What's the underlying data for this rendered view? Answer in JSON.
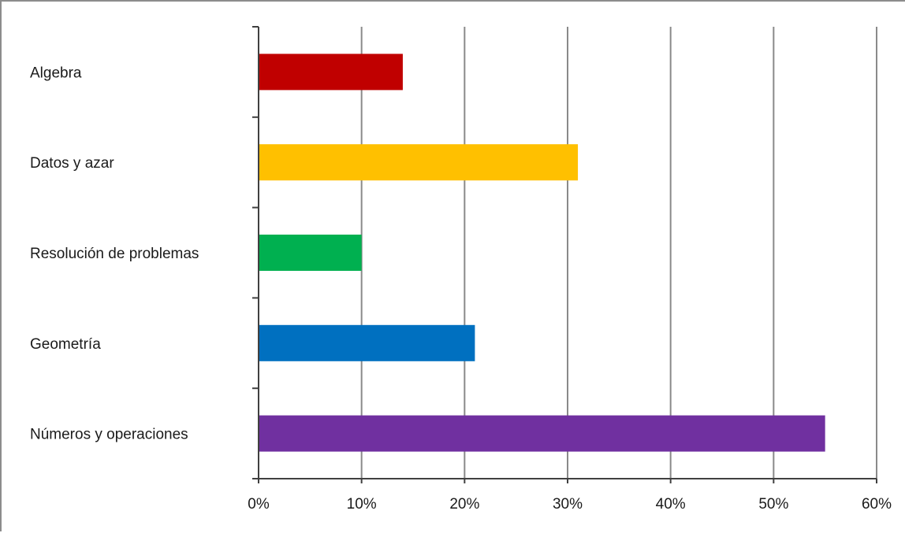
{
  "chart_data": {
    "type": "bar",
    "orientation": "horizontal",
    "title": "",
    "xlabel": "",
    "ylabel": "",
    "categories": [
      "Algebra",
      "Datos y azar",
      "Resolución de problemas",
      "Geometría",
      "Números y operaciones"
    ],
    "values": [
      14,
      31,
      10,
      21,
      55
    ],
    "colors": [
      "#c00000",
      "#ffc000",
      "#00b050",
      "#0070c0",
      "#7030a0"
    ],
    "xlim": [
      0,
      60
    ],
    "x_ticks": [
      0,
      10,
      20,
      30,
      40,
      50,
      60
    ],
    "x_tick_labels": [
      "0%",
      "10%",
      "20%",
      "30%",
      "40%",
      "50%",
      "60%"
    ],
    "grid": "vertical",
    "legend": "none"
  }
}
